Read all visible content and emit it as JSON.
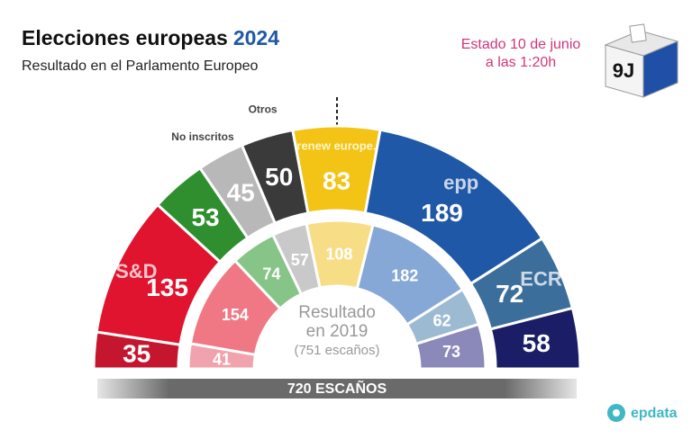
{
  "chart_data": {
    "type": "parliament",
    "title": "Elecciones europeas",
    "title_year": "2024",
    "subtitle": "Resultado en el Parlamento Europeo",
    "timestamp": [
      "Estado 10 de junio",
      "a las 1:20h"
    ],
    "badge": "9J",
    "brand": "epdata",
    "rings": [
      {
        "label": [
          "720 ESCAÑOS"
        ],
        "names": [
          null,
          "S&D",
          null,
          "No inscritos",
          "Otros",
          "renew europe.",
          "epp",
          "ECR",
          null
        ],
        "values": [
          35,
          135,
          53,
          45,
          50,
          83,
          189,
          72,
          58
        ],
        "colors": [
          "#c4162f",
          "#e0142f",
          "#2f8f2f",
          "#b8b8b8",
          "#3a3a3a",
          "#f3c316",
          "#1f58a6",
          "#3c6e9c",
          "#1b1d66"
        ]
      },
      {
        "label": [
          "Resultado",
          "en 2019",
          "(751 escaños)"
        ],
        "values": [
          41,
          154,
          74,
          57,
          108,
          182,
          62,
          73
        ],
        "colors": [
          "#f0a3ac",
          "#f07885",
          "#87c487",
          "#c9c9c9",
          "#f7de86",
          "#86a8d6",
          "#9cbbd3",
          "#8b89b9"
        ]
      }
    ]
  }
}
